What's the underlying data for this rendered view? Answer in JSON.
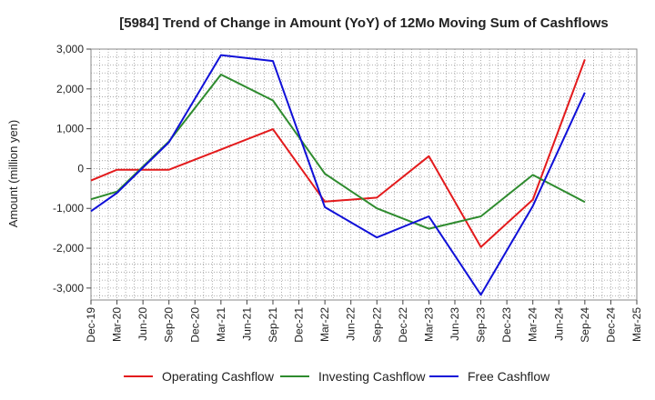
{
  "chart_data": {
    "type": "line",
    "title": "[5984]  Trend of Change in Amount (YoY) of 12Mo Moving Sum of Cashflows",
    "xlabel": "",
    "ylabel": "Amount (million yen)",
    "categories": [
      "Dec-19",
      "Mar-20",
      "Jun-20",
      "Sep-20",
      "Dec-20",
      "Mar-21",
      "Jun-21",
      "Sep-21",
      "Dec-21",
      "Mar-22",
      "Jun-22",
      "Sep-22",
      "Dec-22",
      "Mar-23",
      "Jun-23",
      "Sep-23",
      "Dec-23",
      "Mar-24",
      "Jun-24",
      "Sep-24",
      "Dec-24",
      "Mar-25"
    ],
    "ylim": [
      -3300,
      3000
    ],
    "yticks": [
      3000,
      2000,
      1000,
      0,
      -1000,
      -2000,
      -3000
    ],
    "ytick_labels": [
      "3,000",
      "2,000",
      "1,000",
      "0",
      "-1,000",
      "-2,000",
      "-3,000"
    ],
    "grid": true,
    "legend_position": "bottom",
    "series": [
      {
        "name": "Operating Cashflow",
        "color": "#e31a1c",
        "values": [
          -300,
          -30,
          -30,
          -30,
          null,
          480,
          null,
          990,
          null,
          -830,
          null,
          -730,
          null,
          310,
          null,
          -1970,
          null,
          -780,
          null,
          2740,
          null,
          null
        ]
      },
      {
        "name": "Investing Cashflow",
        "color": "#2e8b2e",
        "values": [
          -770,
          -580,
          null,
          680,
          null,
          2360,
          null,
          1710,
          null,
          -130,
          null,
          -1000,
          null,
          -1510,
          null,
          -1200,
          null,
          -160,
          null,
          -840,
          null,
          null
        ]
      },
      {
        "name": "Free Cashflow",
        "color": "#1010d8",
        "values": [
          -1070,
          -610,
          null,
          660,
          null,
          2850,
          null,
          2700,
          null,
          -970,
          null,
          -1730,
          null,
          -1200,
          null,
          -3170,
          null,
          -940,
          null,
          1910,
          null,
          null
        ]
      }
    ]
  }
}
